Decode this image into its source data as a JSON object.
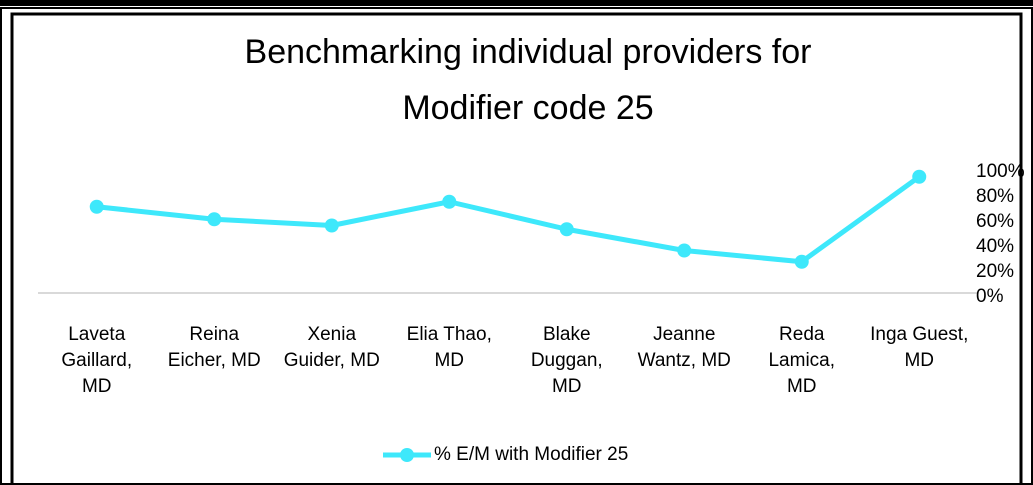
{
  "chart_data": {
    "type": "line",
    "title": "Benchmarking individual providers for Modifier code 25",
    "categories": [
      "Laveta Gaillard, MD",
      "Reina Eicher, MD",
      "Xenia Guider, MD",
      "Elia Thao, MD",
      "Blake Duggan, MD",
      "Jeanne Wantz, MD",
      "Reda Lamica, MD",
      "Inga Guest, MD"
    ],
    "series": [
      {
        "name": "% E/M with Modifier 25",
        "color": "#3ee8fb",
        "values": [
          69,
          59,
          54,
          73,
          51,
          34,
          25,
          93
        ]
      }
    ],
    "ylim": [
      0,
      100
    ],
    "yticks": [
      {
        "value": 0,
        "label": "0%"
      },
      {
        "value": 20,
        "label": "20%"
      },
      {
        "value": 40,
        "label": "40%"
      },
      {
        "value": 60,
        "label": "60%"
      },
      {
        "value": 80,
        "label": "80%"
      },
      {
        "value": 100,
        "label": "100%"
      }
    ],
    "axis_side": "right",
    "legend": "bottom"
  }
}
